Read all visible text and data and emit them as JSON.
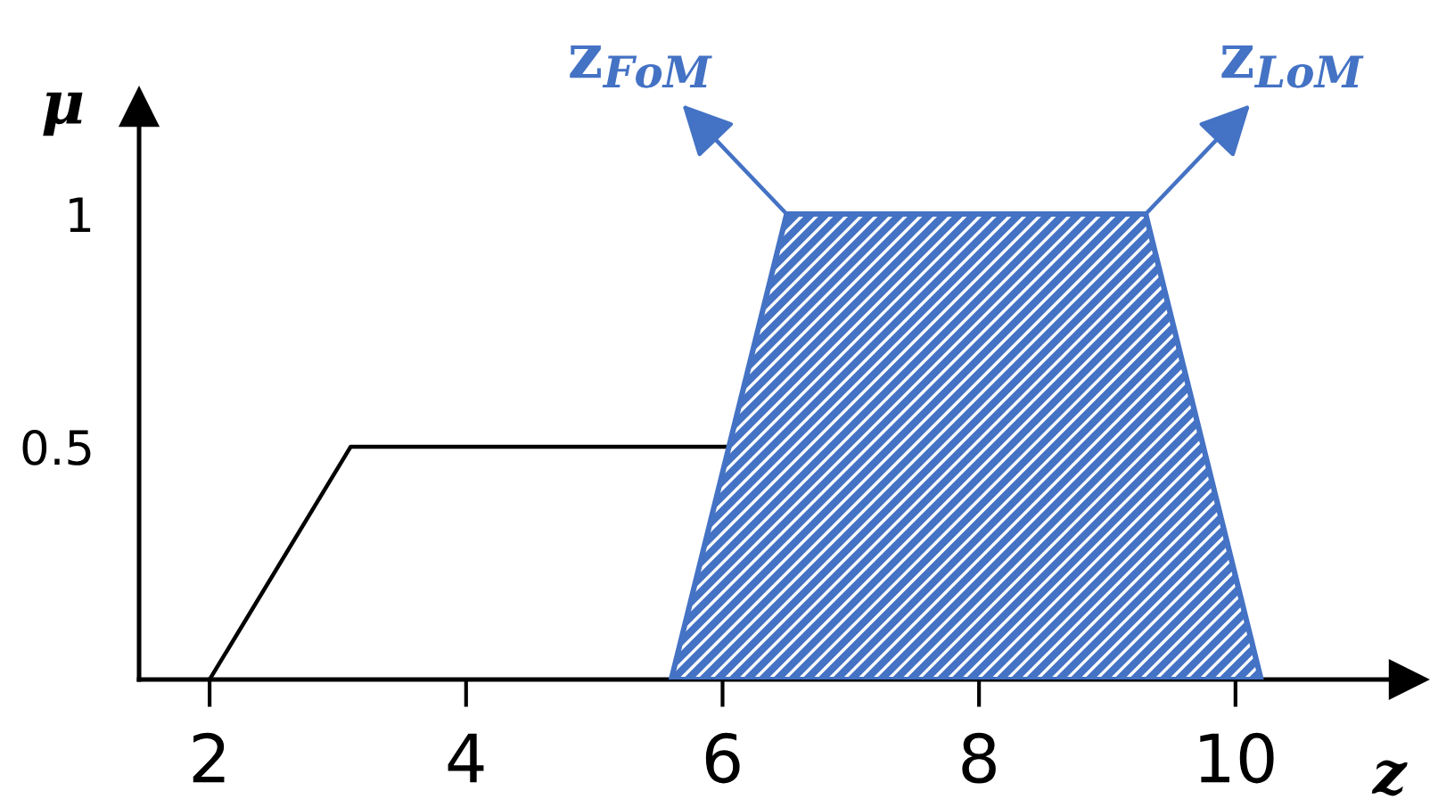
{
  "chart_data": {
    "type": "line",
    "xlabel": "z",
    "ylabel": "μ",
    "xlim": [
      1.45,
      11.35
    ],
    "ylim": [
      0,
      1.23
    ],
    "xticks": [
      2,
      4,
      6,
      8,
      10
    ],
    "yticks": [
      0.5,
      1
    ],
    "series": [
      {
        "color": "#000000",
        "x": [
          2,
          3.1,
          6.05
        ],
        "values": [
          0,
          0.5,
          0.5
        ]
      },
      {
        "type": "area",
        "color": "#4472c4",
        "x": [
          5.6,
          6.5,
          9.3,
          10.2
        ],
        "values": [
          0,
          1,
          1,
          0
        ]
      }
    ],
    "annotations": [
      {
        "text": "z$_{FoM}$",
        "x": 6.5,
        "y": 1
      },
      {
        "text": "z$_{LoM}$",
        "x": 9.3,
        "y": 1
      }
    ]
  }
}
